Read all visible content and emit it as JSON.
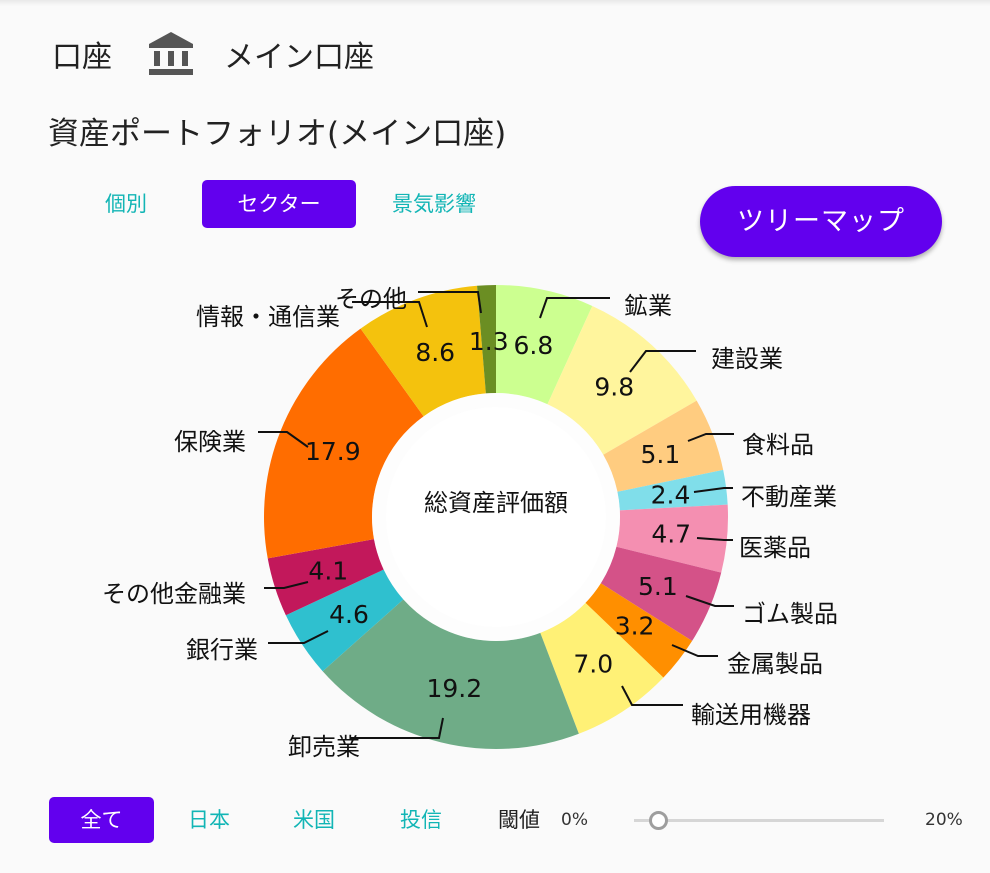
{
  "header": {
    "account_label": "口座",
    "account_name": "メイン口座",
    "icon": "bank-icon"
  },
  "page_title": "資産ポートフォリオ(メイン口座)",
  "tabs": [
    {
      "label": "個別",
      "active": false
    },
    {
      "label": "セクター",
      "active": true
    },
    {
      "label": "景気影響",
      "active": false
    }
  ],
  "treemap_button": "ツリーマップ",
  "chart_data": {
    "type": "pie",
    "center_label": "総資産評価額",
    "slices": [
      {
        "label": "鉱業",
        "value": 6.8,
        "color": "#ccff90"
      },
      {
        "label": "建設業",
        "value": 9.8,
        "color": "#fff59d"
      },
      {
        "label": "食料品",
        "value": 5.1,
        "color": "#ffcc80"
      },
      {
        "label": "不動産業",
        "value": 2.4,
        "color": "#80deea"
      },
      {
        "label": "医薬品",
        "value": 4.7,
        "color": "#f48fb1"
      },
      {
        "label": "ゴム製品",
        "value": 5.1,
        "color": "#d45288"
      },
      {
        "label": "金属製品",
        "value": 3.2,
        "color": "#ff8f00"
      },
      {
        "label": "輸送用機器",
        "value": 7.0,
        "color": "#fff176"
      },
      {
        "label": "卸売業",
        "value": 19.2,
        "color": "#6fac87"
      },
      {
        "label": "銀行業",
        "value": 4.6,
        "color": "#2fc0cf"
      },
      {
        "label": "その他金融業",
        "value": 4.1,
        "color": "#c2185b"
      },
      {
        "label": "保険業",
        "value": 17.9,
        "color": "#ff6d00"
      },
      {
        "label": "情報・通信業",
        "value": 8.6,
        "color": "#f4c20d"
      },
      {
        "label": "その他",
        "value": 1.3,
        "color": "#6b8e23"
      }
    ]
  },
  "filters": [
    {
      "label": "全て",
      "active": true
    },
    {
      "label": "日本",
      "active": false
    },
    {
      "label": "米国",
      "active": false
    },
    {
      "label": "投信",
      "active": false
    }
  ],
  "threshold": {
    "label": "閾値",
    "min_label": "0%",
    "max_label": "20%",
    "value_percent": 0
  }
}
